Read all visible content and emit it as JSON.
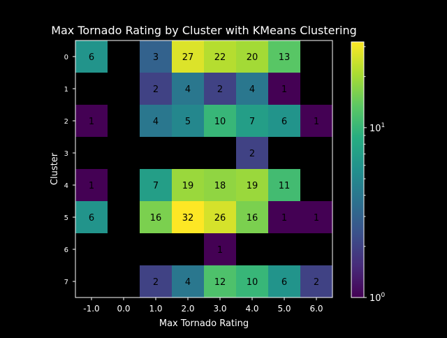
{
  "chart_data": {
    "type": "heatmap",
    "title": "Max Tornado Rating by Cluster with KMeans Clustering",
    "xlabel": "Max Tornado Rating",
    "ylabel": "Cluster",
    "x_categories": [
      "-1.0",
      "0.0",
      "1.0",
      "2.0",
      "3.0",
      "4.0",
      "5.0",
      "6.0"
    ],
    "y_categories": [
      "0",
      "1",
      "2",
      "3",
      "4",
      "5",
      "6",
      "7"
    ],
    "values": [
      [
        6,
        null,
        3,
        27,
        22,
        20,
        13,
        null
      ],
      [
        null,
        null,
        2,
        4,
        2,
        4,
        1,
        null
      ],
      [
        1,
        null,
        4,
        5,
        10,
        7,
        6,
        1
      ],
      [
        null,
        null,
        null,
        null,
        null,
        2,
        null,
        null
      ],
      [
        1,
        null,
        7,
        19,
        18,
        19,
        11,
        null
      ],
      [
        6,
        null,
        16,
        32,
        26,
        16,
        1,
        1
      ],
      [
        null,
        null,
        null,
        null,
        1,
        null,
        null,
        null
      ],
      [
        null,
        null,
        2,
        4,
        12,
        10,
        6,
        2
      ]
    ],
    "colormap": "viridis",
    "color_scale": "log",
    "color_range": [
      1,
      32
    ],
    "colorbar_ticks": [
      "10^0",
      "10^1"
    ],
    "background_color": "#000000",
    "text_color": "#ffffff",
    "cell_text_color": "#000000"
  }
}
